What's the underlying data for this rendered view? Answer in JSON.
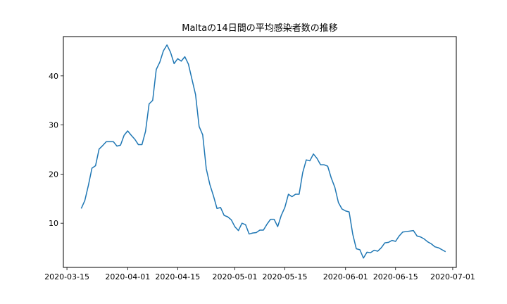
{
  "chart_data": {
    "type": "line",
    "title": "Maltaの14日間の平均感染者数の推移",
    "xlabel": "",
    "ylabel": "",
    "x_tick_labels": [
      "2020-03-15",
      "2020-04-01",
      "2020-04-15",
      "2020-05-01",
      "2020-05-15",
      "2020-06-01",
      "2020-06-15",
      "2020-07-01"
    ],
    "y_tick_labels": [
      "10",
      "20",
      "30",
      "40"
    ],
    "yticks": [
      10,
      20,
      30,
      40
    ],
    "xlim": [
      "2020-03-14",
      "2020-07-02"
    ],
    "ylim": [
      1.0,
      48.0
    ],
    "grid": false,
    "line_color": "#1f77b4",
    "series": [
      {
        "x": [
          "2020-03-19",
          "2020-03-20",
          "2020-03-21",
          "2020-03-22",
          "2020-03-23",
          "2020-03-24",
          "2020-03-25",
          "2020-03-26",
          "2020-03-27",
          "2020-03-28",
          "2020-03-29",
          "2020-03-30",
          "2020-03-31",
          "2020-04-01",
          "2020-04-02",
          "2020-04-03",
          "2020-04-04",
          "2020-04-05",
          "2020-04-06",
          "2020-04-07",
          "2020-04-08",
          "2020-04-09",
          "2020-04-10",
          "2020-04-11",
          "2020-04-12",
          "2020-04-13",
          "2020-04-14",
          "2020-04-15",
          "2020-04-16",
          "2020-04-17",
          "2020-04-18",
          "2020-04-19",
          "2020-04-20",
          "2020-04-21",
          "2020-04-22",
          "2020-04-23",
          "2020-04-24",
          "2020-04-25",
          "2020-04-26",
          "2020-04-27",
          "2020-04-28",
          "2020-04-29",
          "2020-04-30",
          "2020-05-01",
          "2020-05-02",
          "2020-05-03",
          "2020-05-04",
          "2020-05-05",
          "2020-05-06",
          "2020-05-07",
          "2020-05-08",
          "2020-05-09",
          "2020-05-10",
          "2020-05-11",
          "2020-05-12",
          "2020-05-13",
          "2020-05-14",
          "2020-05-15",
          "2020-05-16",
          "2020-05-17",
          "2020-05-18",
          "2020-05-19",
          "2020-05-20",
          "2020-05-21",
          "2020-05-22",
          "2020-05-23",
          "2020-05-24",
          "2020-05-25",
          "2020-05-26",
          "2020-05-27",
          "2020-05-28",
          "2020-05-29",
          "2020-05-30",
          "2020-05-31",
          "2020-06-01",
          "2020-06-02",
          "2020-06-03",
          "2020-06-04",
          "2020-06-05",
          "2020-06-06",
          "2020-06-07",
          "2020-06-08",
          "2020-06-09",
          "2020-06-10",
          "2020-06-11",
          "2020-06-12",
          "2020-06-13",
          "2020-06-14",
          "2020-06-15",
          "2020-06-16",
          "2020-06-17",
          "2020-06-18",
          "2020-06-19",
          "2020-06-20",
          "2020-06-21",
          "2020-06-22",
          "2020-06-23",
          "2020-06-24",
          "2020-06-25",
          "2020-06-26",
          "2020-06-27",
          "2020-06-28",
          "2020-06-29"
        ],
        "values": [
          13.0,
          14.6,
          17.7,
          21.2,
          21.7,
          25.1,
          25.8,
          26.6,
          26.6,
          26.6,
          25.7,
          25.9,
          27.9,
          28.8,
          27.9,
          27.1,
          26.0,
          26.0,
          28.7,
          34.3,
          35.0,
          41.3,
          42.8,
          45.1,
          46.3,
          44.8,
          42.5,
          43.5,
          43.0,
          43.9,
          42.4,
          39.3,
          36.2,
          29.7,
          28.0,
          21.1,
          17.9,
          15.6,
          13.0,
          13.2,
          11.6,
          11.3,
          10.7,
          9.3,
          8.5,
          10.0,
          9.7,
          7.8,
          8.0,
          8.1,
          8.6,
          8.6,
          9.8,
          10.8,
          10.8,
          9.3,
          11.6,
          13.2,
          15.9,
          15.4,
          15.9,
          15.9,
          20.3,
          22.9,
          22.7,
          24.1,
          23.2,
          21.9,
          21.9,
          21.6,
          19.2,
          17.3,
          14.2,
          12.9,
          12.5,
          12.3,
          7.8,
          4.8,
          4.6,
          2.9,
          4.1,
          4.0,
          4.5,
          4.3,
          5.0,
          6.0,
          6.1,
          6.5,
          6.3,
          7.4,
          8.2,
          8.3,
          8.4,
          8.5,
          7.4,
          7.2,
          6.8,
          6.2,
          5.8,
          5.2,
          5.0,
          4.6,
          4.2
        ]
      }
    ]
  }
}
